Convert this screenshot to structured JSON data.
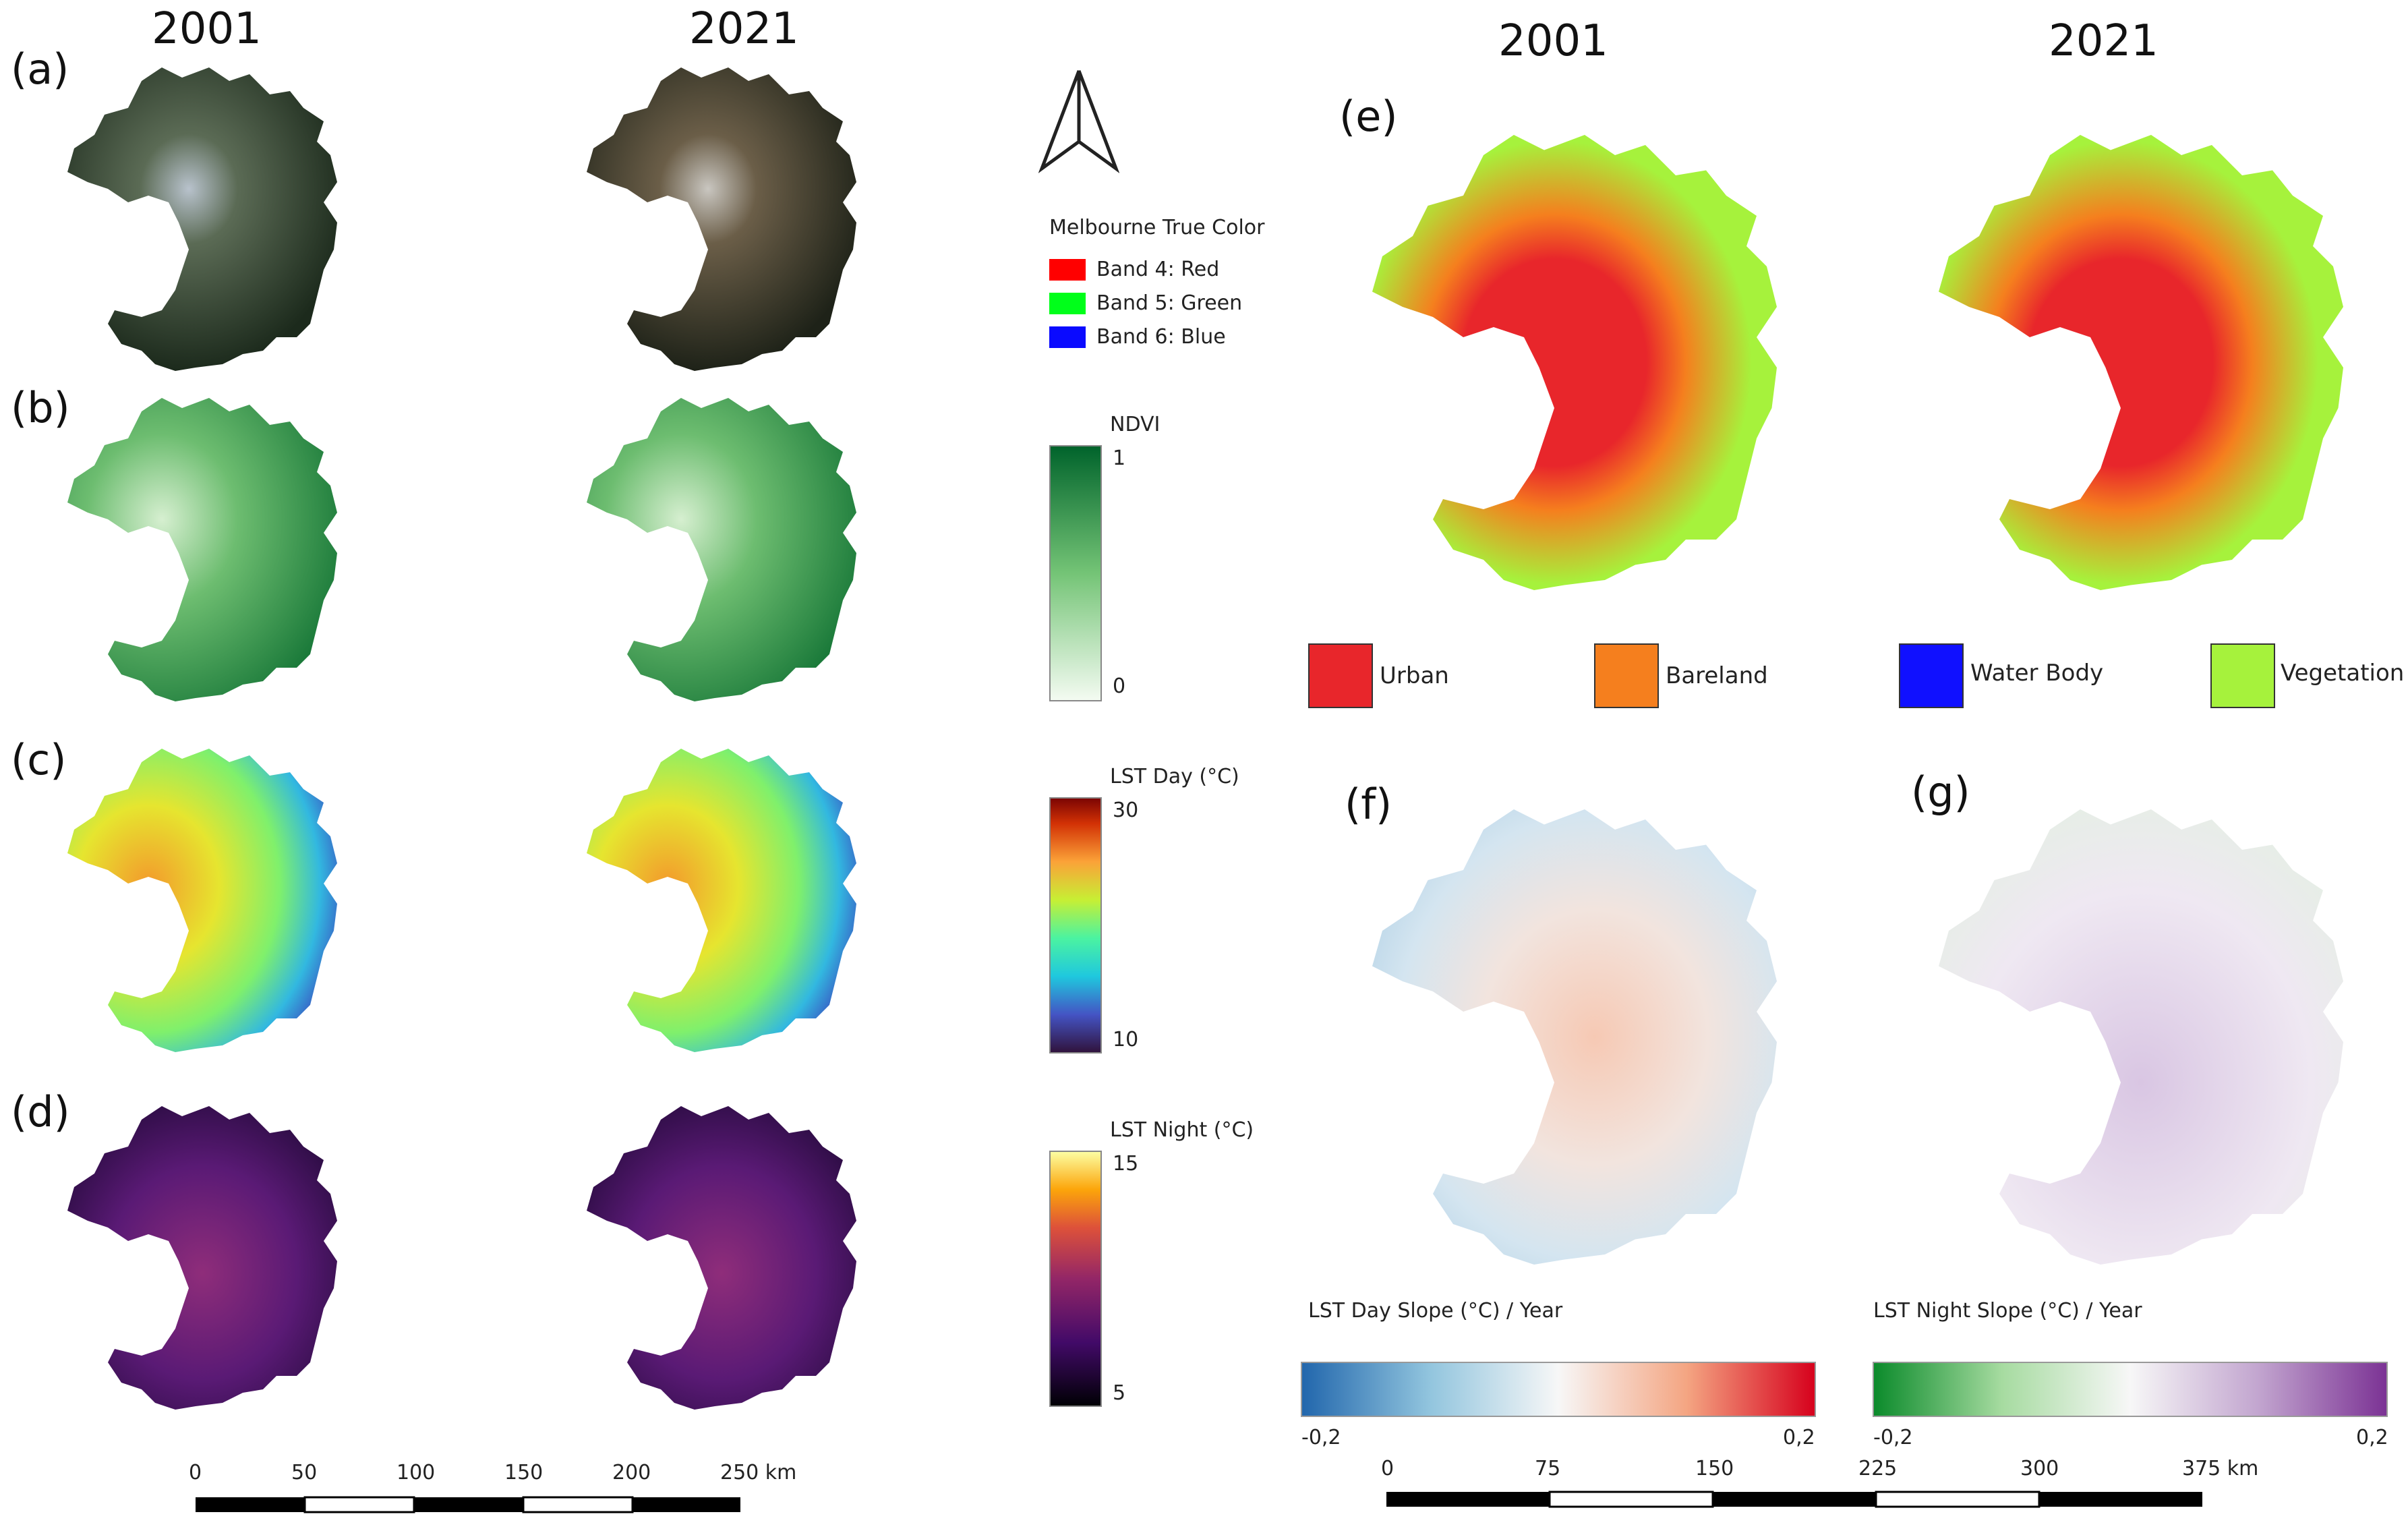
{
  "left": {
    "year_a": "2001",
    "year_b": "2021",
    "panels": [
      "(a)",
      "(b)",
      "(c)",
      "(d)"
    ]
  },
  "right": {
    "year_a": "2001",
    "year_b": "2021",
    "panels": [
      "(e)",
      "(f)",
      "(g)"
    ]
  },
  "true_color_legend": {
    "title": "Melbourne True Color",
    "bands": [
      {
        "label": "Band 4: Red",
        "color": "#ff0000"
      },
      {
        "label": "Band 5: Green",
        "color": "#00ff1a"
      },
      {
        "label": "Band 6: Blue",
        "color": "#0a0aff"
      }
    ]
  },
  "ndvi_legend": {
    "title": "NDVI",
    "max": "1",
    "min": "0"
  },
  "lst_day_legend": {
    "title": "LST Day (°C)",
    "max": "30",
    "min": "10"
  },
  "lst_night_legend": {
    "title": "LST Night (°C)",
    "max": "15",
    "min": "5"
  },
  "landcover_legend": [
    {
      "label": "Urban",
      "color": "#e8262b"
    },
    {
      "label": "Bareland",
      "color": "#f57f1e"
    },
    {
      "label": "Water Body",
      "color": "#1010ff"
    },
    {
      "label": "Vegetation",
      "color": "#a6f23c"
    }
  ],
  "day_slope": {
    "title": "LST Day Slope (°C) / Year",
    "min": "-0,2",
    "max": "0,2"
  },
  "night_slope": {
    "title": "LST Night Slope (°C) / Year",
    "min": "-0,2",
    "max": "0,2"
  },
  "scalebar_left": {
    "ticks": [
      "0",
      "50",
      "100",
      "150",
      "200",
      "250 km"
    ]
  },
  "scalebar_right": {
    "ticks": [
      "0",
      "75",
      "150",
      "225",
      "300",
      "375 km"
    ]
  }
}
